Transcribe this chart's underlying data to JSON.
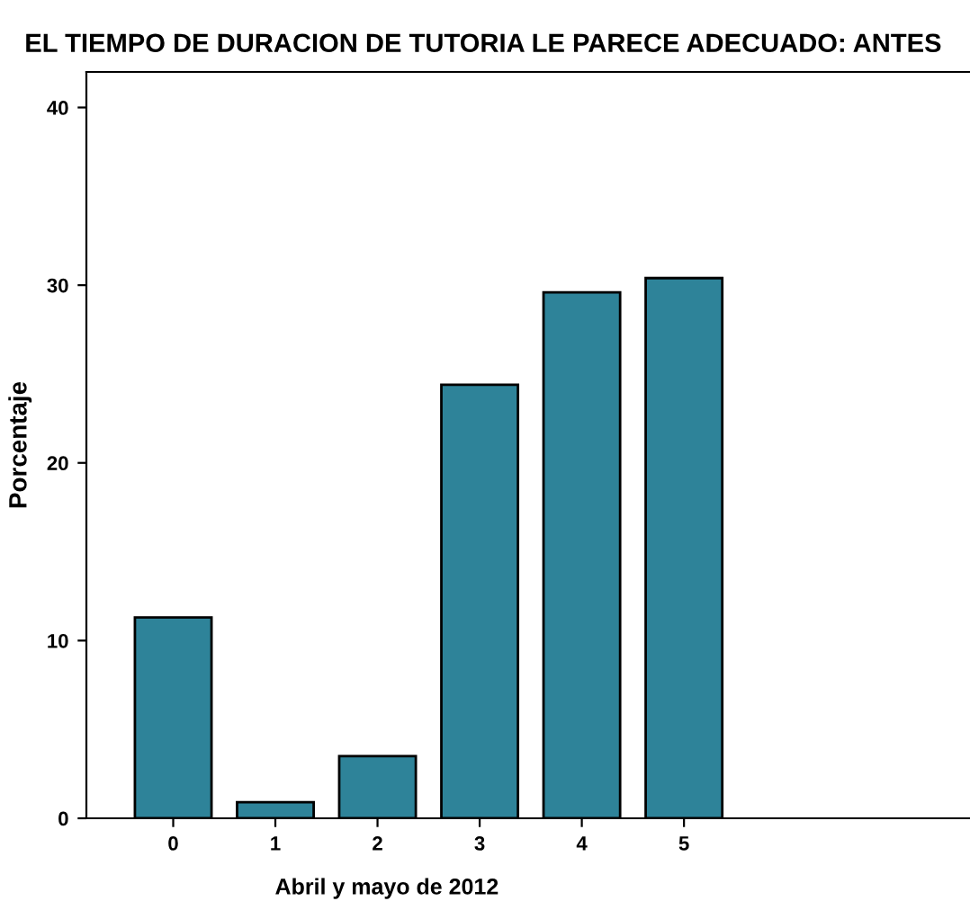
{
  "chart_data": {
    "type": "bar",
    "title": "EL TIEMPO DE DURACION DE TUTORIA LE PARECE ADECUADO: ANTES",
    "xlabel": "Abril y mayo de 2012",
    "ylabel": "Porcentaje",
    "categories": [
      "0",
      "1",
      "2",
      "3",
      "4",
      "5"
    ],
    "values": [
      11.3,
      0.9,
      3.5,
      24.4,
      29.6,
      30.4
    ],
    "color": "#2e8399",
    "ylim": [
      0,
      42
    ],
    "yticks": [
      0,
      10,
      20,
      30,
      40
    ],
    "grid": false
  }
}
